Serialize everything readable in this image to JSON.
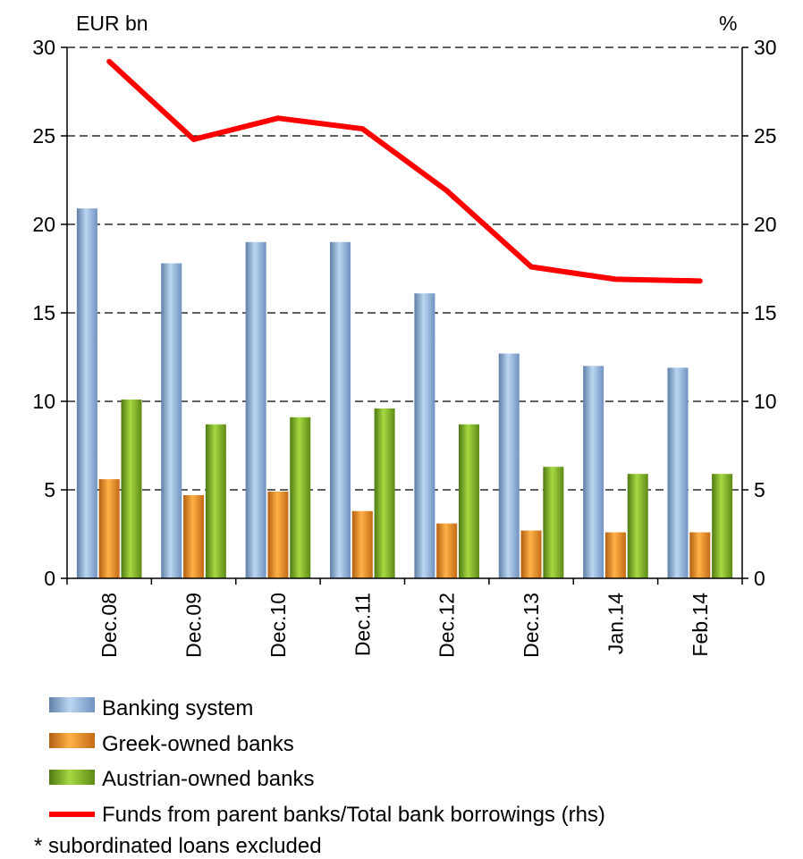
{
  "chart_data": {
    "type": "bar",
    "left_axis_unit": "EUR bn",
    "right_axis_unit": "%",
    "categories": [
      "Dec.08",
      "Dec.09",
      "Dec.10",
      "Dec.11",
      "Dec.12",
      "Dec.13",
      "Jan.14",
      "Feb.14"
    ],
    "ylim": [
      0,
      30
    ],
    "y2lim": [
      0,
      30
    ],
    "yticks": [
      0,
      5,
      10,
      15,
      20,
      25,
      30
    ],
    "y2ticks": [
      0,
      5,
      10,
      15,
      20,
      25,
      30
    ],
    "grid": "horizontal dashed",
    "legend_position": "bottom",
    "series": [
      {
        "name": "Banking system",
        "type": "bar",
        "axis": "left",
        "color": "#8DB4E2",
        "values": [
          20.9,
          17.8,
          19.0,
          19.0,
          16.1,
          12.7,
          12.0,
          11.9
        ]
      },
      {
        "name": "Greek-owned banks",
        "type": "bar",
        "axis": "left",
        "color": "#F79646",
        "values": [
          5.6,
          4.7,
          4.9,
          3.8,
          3.1,
          2.7,
          2.6,
          2.6
        ]
      },
      {
        "name": "Austrian-owned banks",
        "type": "bar",
        "axis": "left",
        "color": "#8CC63F",
        "values": [
          10.1,
          8.7,
          9.1,
          9.6,
          8.7,
          6.3,
          5.9,
          5.9
        ]
      },
      {
        "name": "Funds from parent banks/Total bank borrowings (rhs)",
        "type": "line",
        "axis": "right",
        "color": "#FF0000",
        "values": [
          29.2,
          24.8,
          26.0,
          25.4,
          21.9,
          17.6,
          16.9,
          16.8
        ]
      }
    ],
    "footnote": "* subordinated loans excluded"
  }
}
